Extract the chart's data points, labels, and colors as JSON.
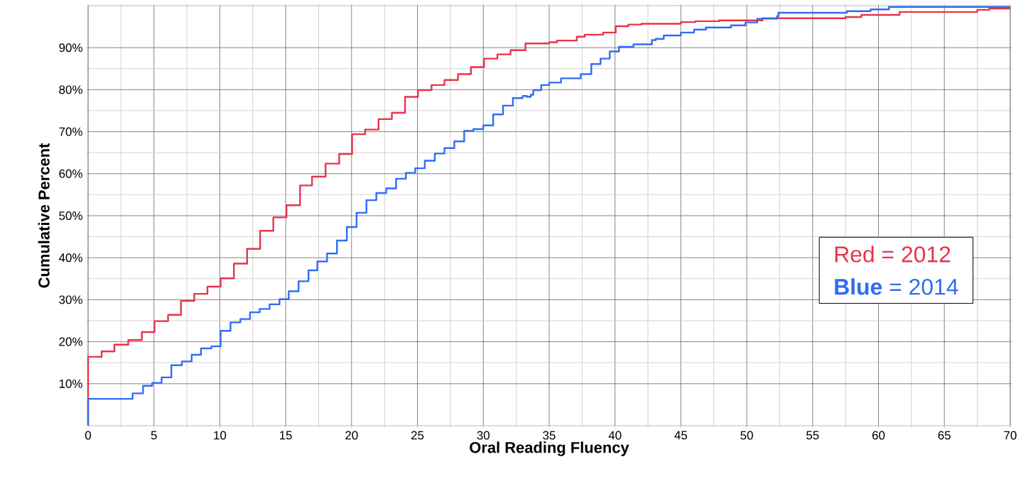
{
  "chart_data": {
    "type": "step",
    "xlabel": "Oral Reading Fluency",
    "ylabel": "Cumulative Percent",
    "xlim": [
      0,
      70
    ],
    "ylim": [
      0,
      100
    ],
    "xticks": [
      0,
      5,
      10,
      15,
      20,
      25,
      30,
      35,
      40,
      45,
      50,
      55,
      60,
      65,
      70
    ],
    "yticks": [
      {
        "value": 10,
        "label": "10%"
      },
      {
        "value": 20,
        "label": "20%"
      },
      {
        "value": 30,
        "label": "30%"
      },
      {
        "value": 40,
        "label": "40%"
      },
      {
        "value": 50,
        "label": "50%"
      },
      {
        "value": 60,
        "label": "60%"
      },
      {
        "value": 70,
        "label": "70%"
      },
      {
        "value": 80,
        "label": "80%"
      },
      {
        "value": 90,
        "label": "90%"
      }
    ],
    "grid": true,
    "legend": "right",
    "line_style": "solid",
    "series": [
      {
        "name": "Red = 2012",
        "color": "#e8334a",
        "x": [
          0,
          0,
          1.03,
          2.0,
          3.05,
          4.08,
          5.04,
          6.07,
          7.05,
          8.06,
          9.06,
          10.06,
          11.07,
          12.07,
          13.06,
          14.06,
          15.06,
          16.09,
          17.0,
          18.03,
          19.06,
          20.04,
          21.03,
          22.05,
          23.06,
          24.06,
          25.04,
          26.07,
          27.05,
          28.08,
          29.06,
          30.06,
          31.07,
          32.07,
          33.2,
          35.0,
          35.6,
          37.1,
          37.7,
          39.1,
          40.05,
          41.0,
          42.0,
          45.0,
          46.1,
          47.9,
          51.2,
          57.5,
          58.7,
          61.6,
          67.5,
          68.4,
          70
        ],
        "values": [
          0,
          16.4,
          17.7,
          19.3,
          20.4,
          22.3,
          24.9,
          26.4,
          29.7,
          31.4,
          33.1,
          35.1,
          38.6,
          42.1,
          46.4,
          49.6,
          52.5,
          57.2,
          59.3,
          62.4,
          64.7,
          69.4,
          70.5,
          73.0,
          74.5,
          78.3,
          79.9,
          81.1,
          82.3,
          83.7,
          85.4,
          87.4,
          88.4,
          89.4,
          91.0,
          91.3,
          91.7,
          92.6,
          93.1,
          93.6,
          95.1,
          95.5,
          95.7,
          96.1,
          96.3,
          96.5,
          97.0,
          97.3,
          97.8,
          98.5,
          99.0,
          99.3,
          99.3
        ]
      },
      {
        "name": "**Blue** = 2014",
        "color": "#2f6cf6",
        "x": [
          0,
          0,
          3.38,
          4.17,
          4.87,
          5.58,
          6.32,
          7.12,
          7.86,
          8.57,
          9.36,
          10.06,
          10.81,
          11.56,
          12.29,
          13.03,
          13.78,
          14.53,
          15.23,
          15.98,
          16.73,
          17.4,
          18.14,
          18.89,
          19.64,
          20.38,
          21.13,
          21.88,
          22.63,
          23.38,
          24.12,
          24.83,
          25.56,
          26.32,
          27.05,
          27.8,
          28.55,
          29.25,
          30.0,
          30.75,
          31.5,
          32.25,
          32.99,
          33.3,
          33.6,
          33.8,
          34.4,
          35.0,
          35.9,
          37.4,
          38.2,
          38.9,
          39.6,
          40.3,
          41.4,
          42.8,
          43.1,
          43.7,
          45.0,
          46.0,
          46.9,
          48.8,
          49.9,
          50.8,
          52.3,
          52.4,
          57.6,
          59.4,
          60.8,
          70
        ],
        "values": [
          0,
          6.4,
          7.7,
          9.5,
          10.2,
          11.5,
          14.4,
          15.3,
          16.9,
          18.4,
          18.9,
          22.6,
          24.6,
          25.4,
          27.0,
          27.8,
          28.9,
          30.1,
          32.0,
          34.4,
          37.0,
          39.1,
          41.0,
          44.1,
          47.3,
          50.7,
          53.7,
          55.4,
          56.5,
          58.8,
          60.2,
          61.3,
          63.1,
          64.8,
          66.1,
          67.7,
          70.2,
          70.6,
          71.5,
          74.1,
          76.2,
          78.0,
          78.5,
          78.3,
          78.8,
          79.9,
          81.1,
          81.7,
          82.7,
          83.7,
          86.1,
          87.4,
          89.1,
          90.2,
          90.8,
          91.8,
          92.1,
          92.9,
          93.6,
          94.3,
          94.8,
          95.3,
          96.0,
          96.9,
          97.5,
          98.3,
          98.7,
          99.1,
          99.7,
          99.7
        ]
      }
    ]
  }
}
